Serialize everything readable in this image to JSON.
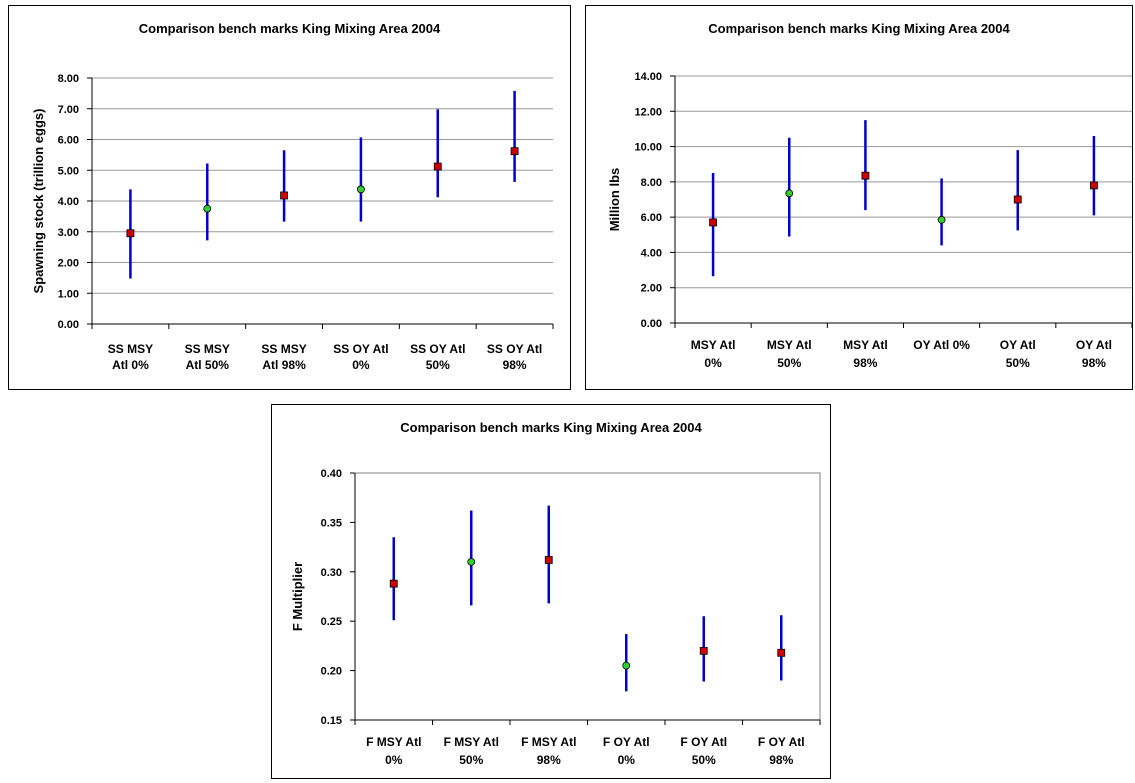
{
  "colors": {
    "whisker": "#0000cc",
    "marker_square": "#cc0000",
    "marker_circle": "#33cc33",
    "marker_outline": "#000000",
    "gridline": "#999999",
    "axis": "#000000"
  },
  "chart_data": [
    {
      "type": "scatter",
      "title": "Comparison bench marks King Mixing Area 2004",
      "xlabel": "",
      "ylabel": "Spawning stock (trillion eggs)",
      "ylim": [
        0,
        8
      ],
      "ystep": 1,
      "ydecimals": 2,
      "grid": true,
      "categories": [
        [
          "SS MSY",
          "Atl 0%"
        ],
        [
          "SS MSY",
          "Atl 50%"
        ],
        [
          "SS MSY",
          "Atl 98%"
        ],
        [
          "SS OY Atl",
          "0%"
        ],
        [
          "SS OY Atl",
          "50%"
        ],
        [
          "SS OY Atl",
          "98%"
        ]
      ],
      "values": [
        2.95,
        3.75,
        4.18,
        4.38,
        5.12,
        5.62
      ],
      "low": [
        1.48,
        2.72,
        3.33,
        3.33,
        4.12,
        4.62
      ],
      "high": [
        4.38,
        5.22,
        5.65,
        6.07,
        6.98,
        7.58
      ],
      "markers": [
        "square",
        "circle",
        "square",
        "circle",
        "square",
        "square"
      ]
    },
    {
      "type": "scatter",
      "title": "Comparison bench marks King Mixing Area 2004",
      "xlabel": "",
      "ylabel": "Million lbs",
      "ylim": [
        0,
        14
      ],
      "ystep": 2,
      "ydecimals": 2,
      "grid": true,
      "categories": [
        [
          "MSY Atl",
          "0%"
        ],
        [
          "MSY Atl",
          "50%"
        ],
        [
          "MSY Atl",
          "98%"
        ],
        [
          "OY Atl 0%"
        ],
        [
          "OY Atl",
          "50%"
        ],
        [
          "OY Atl",
          "98%"
        ]
      ],
      "values": [
        5.7,
        7.35,
        8.35,
        5.85,
        7.0,
        7.8
      ],
      "low": [
        2.65,
        4.9,
        6.4,
        4.4,
        5.25,
        6.1
      ],
      "high": [
        8.5,
        10.5,
        11.5,
        8.2,
        9.8,
        10.6
      ],
      "markers": [
        "square",
        "circle",
        "square",
        "circle",
        "square",
        "square"
      ]
    },
    {
      "type": "scatter",
      "title": "Comparison bench marks King Mixing Area 2004",
      "xlabel": "",
      "ylabel": "F Multiplier",
      "ylim": [
        0.15,
        0.4
      ],
      "ystep": 0.05,
      "ydecimals": 2,
      "grid": false,
      "categories": [
        [
          "F MSY Atl",
          "0%"
        ],
        [
          "F MSY Atl",
          "50%"
        ],
        [
          "F MSY Atl",
          "98%"
        ],
        [
          "F OY Atl",
          "0%"
        ],
        [
          "F OY Atl",
          "50%"
        ],
        [
          "F OY Atl",
          "98%"
        ]
      ],
      "values": [
        0.288,
        0.31,
        0.312,
        0.205,
        0.22,
        0.218
      ],
      "low": [
        0.251,
        0.266,
        0.268,
        0.179,
        0.189,
        0.19
      ],
      "high": [
        0.335,
        0.362,
        0.367,
        0.237,
        0.255,
        0.256
      ],
      "markers": [
        "square",
        "circle",
        "square",
        "circle",
        "square",
        "square"
      ]
    }
  ]
}
